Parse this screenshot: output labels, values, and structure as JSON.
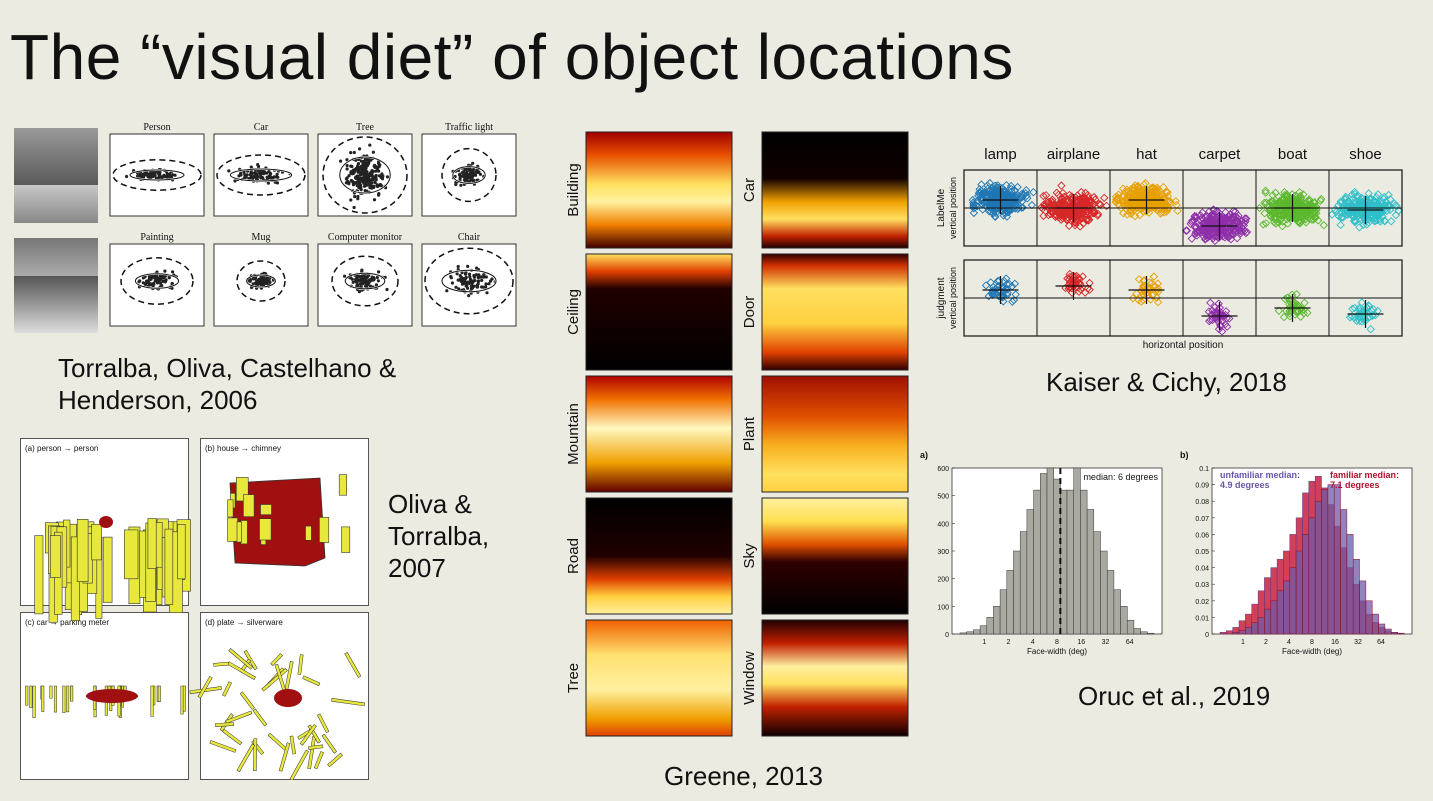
{
  "title": "The “visual diet” of object locations",
  "torralba": {
    "citation_line1": "Torralba, Oliva, Castelhano &",
    "citation_line2": "Henderson, 2006",
    "objects": [
      "Person",
      "Car",
      "Tree",
      "Traffic light",
      "Painting",
      "Mug",
      "Computer monitor",
      "Chair"
    ]
  },
  "oliva": {
    "citation_line1": "Oliva &",
    "citation_line2": "Torralba,",
    "citation_line3": "2007",
    "panels": [
      "(a) person → person",
      "(b) house → chimney",
      "(c) car → parking meter",
      "(d) plate → silverware"
    ]
  },
  "greene": {
    "citation": "Greene, 2013",
    "left_categories": [
      "Building",
      "Ceiling",
      "Mountain",
      "Road",
      "Tree"
    ],
    "right_categories": [
      "Car",
      "Door",
      "Plant",
      "Sky",
      "Window"
    ]
  },
  "kaiser": {
    "citation": "Kaiser & Cichy, 2018",
    "objects": [
      "lamp",
      "airplane",
      "hat",
      "carpet",
      "boat",
      "shoe"
    ],
    "row1_label": "LabelMe",
    "row1_sub": "vertical position",
    "row2_label": "judgment",
    "row2_sub": "vertical position",
    "xlabel": "horizontal position",
    "colors": [
      "#1f77b4",
      "#d62728",
      "#e6a000",
      "#8e2fa8",
      "#5cb82e",
      "#2fbfc9"
    ]
  },
  "oruc": {
    "citation": "Oruc et al., 2019",
    "panel_a_label": "a)",
    "panel_b_label": "b)",
    "median_label": "median:",
    "median_value": "6 degrees",
    "unfamiliar_label": "unfamiliar median:",
    "unfamiliar_value": "4.9 degrees",
    "familiar_label": "familiar median:",
    "familiar_value": "7.1 degrees",
    "xlabel": "Face-width (deg)"
  },
  "chart_data": [
    {
      "type": "bar",
      "xlabel": "Face-width (deg)",
      "ylim": [
        0,
        600
      ],
      "yticks": [
        0,
        100,
        200,
        300,
        400,
        500,
        600
      ],
      "xticks": [
        "1",
        "2",
        "4",
        "8",
        "16",
        "32",
        "64"
      ],
      "values": [
        4,
        8,
        15,
        30,
        60,
        100,
        160,
        230,
        300,
        370,
        450,
        520,
        580,
        600,
        560,
        520,
        520,
        600,
        520,
        450,
        370,
        300,
        230,
        160,
        100,
        50,
        20,
        8,
        3
      ]
    },
    {
      "type": "bar",
      "xlabel": "Face-width (deg)",
      "ylim": [
        0,
        0.1
      ],
      "yticks": [
        0,
        0.01,
        0.02,
        0.03,
        0.04,
        0.05,
        0.06,
        0.07,
        0.08,
        0.09,
        0.1
      ],
      "xticks": [
        "1",
        "2",
        "4",
        "8",
        "16",
        "32",
        "64"
      ],
      "series": [
        {
          "name": "unfamiliar median",
          "values": [
            0.001,
            0.002,
            0.004,
            0.008,
            0.012,
            0.018,
            0.026,
            0.034,
            0.04,
            0.045,
            0.05,
            0.06,
            0.07,
            0.085,
            0.092,
            0.095,
            0.088,
            0.078,
            0.065,
            0.052,
            0.04,
            0.03,
            0.02,
            0.012,
            0.007,
            0.004,
            0.002,
            0.001,
            0.0005
          ]
        },
        {
          "name": "familiar median",
          "values": [
            0,
            0,
            0.001,
            0.002,
            0.004,
            0.007,
            0.01,
            0.015,
            0.02,
            0.026,
            0.032,
            0.04,
            0.05,
            0.06,
            0.07,
            0.08,
            0.087,
            0.09,
            0.09,
            0.075,
            0.06,
            0.045,
            0.032,
            0.02,
            0.012,
            0.006,
            0.003,
            0.001,
            0.0005
          ]
        }
      ]
    }
  ]
}
